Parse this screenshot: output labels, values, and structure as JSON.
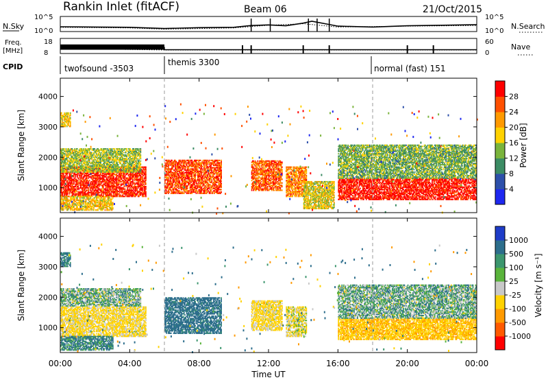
{
  "header": {
    "station": "Rankin Inlet (fitACF)",
    "beam": "Beam 06",
    "date": "21/Oct/2015"
  },
  "noise_panel": {
    "left_label": "N.Sky",
    "right_label": "N.Search",
    "left_ticks": [
      "10^5",
      "10^0"
    ],
    "right_ticks": [
      "10^5",
      "10^0"
    ]
  },
  "freq_panel": {
    "left_label_line1": "Freq.",
    "left_label_line2": "[MHz]",
    "right_label": "Nave",
    "left_ticks": [
      "18",
      "8"
    ],
    "right_ticks": [
      "60",
      "0"
    ]
  },
  "cpid": {
    "label": "CPID",
    "segments": [
      {
        "name": "twofsound -3503",
        "start_hour": 0,
        "end_hour": 6
      },
      {
        "name": "themis 3300",
        "start_hour": 6,
        "end_hour": 18
      },
      {
        "name": "normal (fast) 151",
        "start_hour": 18,
        "end_hour": 24
      }
    ]
  },
  "axes": {
    "ylabel": "Slant Range [km]",
    "xlabel": "Time UT",
    "xticks": [
      "00:00",
      "04:00",
      "08:00",
      "12:00",
      "16:00",
      "20:00",
      "00:00"
    ],
    "yticks": [
      "1000",
      "2000",
      "3000",
      "4000"
    ]
  },
  "power_colorbar": {
    "label": "Power [dB]",
    "ticks": [
      "4",
      "8",
      "12",
      "16",
      "20",
      "24",
      "28"
    ],
    "colors": [
      "#1e28f0",
      "#2d50aa",
      "#3c8c64",
      "#7ab43c",
      "#ffd200",
      "#ff9a00",
      "#ff5000",
      "#ff0000"
    ]
  },
  "velocity_colorbar": {
    "label": "Velocity [m s⁻¹]",
    "ticks": [
      "1000",
      "500",
      "100",
      "25",
      "-25",
      "-100",
      "-500",
      "-1000"
    ],
    "colors": [
      "#1e3cc8",
      "#2d6e8c",
      "#3c966e",
      "#5ab43c",
      "#c8c8c8",
      "#ffd200",
      "#ff9a00",
      "#ff5a00",
      "#ff0000"
    ]
  },
  "chart_data": [
    {
      "type": "heatmap",
      "panel": "power",
      "title": "",
      "xlabel": "Time UT",
      "ylabel": "Slant Range [km]",
      "xlim": [
        0,
        24
      ],
      "ylim": [
        180,
        4600
      ],
      "colorbar_label": "Power [dB]",
      "colorbar_range": [
        0,
        30
      ],
      "regions": [
        {
          "t0": 0.0,
          "t1": 4.9,
          "r0": 700,
          "r1": 1700,
          "value": 27
        },
        {
          "t0": 0.0,
          "t1": 4.6,
          "r0": 1500,
          "r1": 2300,
          "value": 14
        },
        {
          "t0": 0.0,
          "t1": 3.0,
          "r0": 250,
          "r1": 700,
          "value": 18
        },
        {
          "t0": 6.0,
          "t1": 9.3,
          "r0": 800,
          "r1": 1900,
          "value": 25
        },
        {
          "t0": 11.0,
          "t1": 12.8,
          "r0": 900,
          "r1": 1900,
          "value": 24
        },
        {
          "t0": 13.0,
          "t1": 14.2,
          "r0": 700,
          "r1": 1700,
          "value": 22
        },
        {
          "t0": 14.0,
          "t1": 15.8,
          "r0": 300,
          "r1": 1200,
          "value": 16
        },
        {
          "t0": 16.0,
          "t1": 24.0,
          "r0": 600,
          "r1": 1300,
          "value": 28
        },
        {
          "t0": 16.0,
          "t1": 24.0,
          "r0": 1300,
          "r1": 2400,
          "value": 12
        },
        {
          "t0": 0.0,
          "t1": 0.6,
          "r0": 3000,
          "r1": 3450,
          "value": 17
        }
      ]
    },
    {
      "type": "heatmap",
      "panel": "velocity",
      "title": "",
      "xlabel": "Time UT",
      "ylabel": "Slant Range [km]",
      "xlim": [
        0,
        24
      ],
      "ylim": [
        180,
        4600
      ],
      "colorbar_label": "Velocity [m s⁻¹]",
      "colorbar_range": [
        -1000,
        1000
      ],
      "regions": [
        {
          "t0": 0.0,
          "t1": 4.9,
          "r0": 700,
          "r1": 1700,
          "value": -150
        },
        {
          "t0": 0.0,
          "t1": 4.6,
          "r0": 1700,
          "r1": 2300,
          "value": 10
        },
        {
          "t0": 0.0,
          "t1": 3.0,
          "r0": 250,
          "r1": 700,
          "value": 120
        },
        {
          "t0": 6.0,
          "t1": 9.3,
          "r0": 800,
          "r1": 2000,
          "value": 200
        },
        {
          "t0": 11.0,
          "t1": 12.8,
          "r0": 900,
          "r1": 1900,
          "value": -150
        },
        {
          "t0": 13.0,
          "t1": 14.2,
          "r0": 700,
          "r1": 1700,
          "value": -100
        },
        {
          "t0": 16.0,
          "t1": 24.0,
          "r0": 600,
          "r1": 1300,
          "value": -250
        },
        {
          "t0": 16.0,
          "t1": 24.0,
          "r0": 1300,
          "r1": 2400,
          "value": 20
        },
        {
          "t0": 0.0,
          "t1": 0.6,
          "r0": 3000,
          "r1": 3450,
          "value": 150
        }
      ]
    },
    {
      "type": "line",
      "panel": "noise",
      "title": "",
      "xlabel": "",
      "ylabel": "N.Sky",
      "xlim": [
        0,
        24
      ],
      "ylim": [
        0,
        5
      ],
      "scale": "log",
      "series": [
        {
          "name": "N.Sky",
          "x": [
            0,
            2,
            4,
            6,
            8,
            10,
            11,
            12,
            13,
            14,
            14.5,
            16,
            18,
            20,
            22,
            24
          ],
          "y": [
            1.6,
            1.5,
            1.4,
            1.0,
            1.3,
            1.4,
            2.0,
            2.2,
            1.9,
            2.8,
            3.4,
            1.8,
            1.5,
            1.9,
            2.1,
            2.3
          ]
        },
        {
          "name": "N.Search",
          "x": [
            0,
            4,
            6,
            10,
            12,
            14,
            16,
            20,
            24
          ],
          "y": [
            1.4,
            1.2,
            0.8,
            1.2,
            2.1,
            2.6,
            1.5,
            1.8,
            2.0
          ]
        }
      ]
    },
    {
      "type": "line",
      "panel": "frequency",
      "title": "",
      "xlabel": "",
      "ylabel": "Freq. [MHz]",
      "xlim": [
        0,
        24
      ],
      "ylim": [
        8,
        18
      ],
      "series": [
        {
          "name": "Freq.",
          "x": [
            0,
            6,
            6,
            24
          ],
          "y": [
            12,
            12,
            10.5,
            10.5
          ]
        },
        {
          "name": "Nave",
          "x": [
            0,
            6,
            24
          ],
          "y": [
            20,
            14,
            14
          ]
        }
      ]
    }
  ]
}
